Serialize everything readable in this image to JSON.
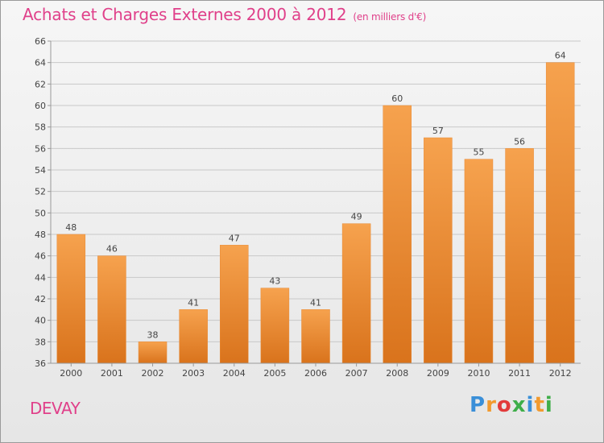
{
  "header": {
    "title": "Achats et Charges Externes 2000 à 2012",
    "subtitle": "(en milliers d'€)"
  },
  "footer": {
    "commune": "DEVAY",
    "logo": "Proxiti",
    "logo_letters": [
      "P",
      "r",
      "o",
      "x",
      "i",
      "t",
      "i"
    ],
    "logo_colors": [
      "#3a8fd8",
      "#f29a2e",
      "#e23b3b",
      "#3fae49",
      "#3a8fd8",
      "#f29a2e",
      "#3fae49"
    ]
  },
  "colors": {
    "title": "#e0408a",
    "bar_light": "#f6a24e",
    "bar_dark": "#d9731c",
    "axis": "#999999",
    "grid": "#c8c8c8"
  },
  "chart_data": {
    "type": "bar",
    "title": "Achats et Charges Externes 2000 à 2012",
    "subtitle": "(en milliers d'€)",
    "categories": [
      "2000",
      "2001",
      "2002",
      "2003",
      "2004",
      "2005",
      "2006",
      "2007",
      "2008",
      "2009",
      "2010",
      "2011",
      "2012"
    ],
    "values": [
      48,
      46,
      38,
      41,
      47,
      43,
      41,
      49,
      60,
      57,
      55,
      56,
      64
    ],
    "ylim": [
      36,
      66
    ],
    "yticks": [
      36,
      38,
      40,
      42,
      44,
      46,
      48,
      50,
      52,
      54,
      56,
      58,
      60,
      62,
      64,
      66
    ],
    "grid": true,
    "legend": false,
    "data_labels": true
  }
}
